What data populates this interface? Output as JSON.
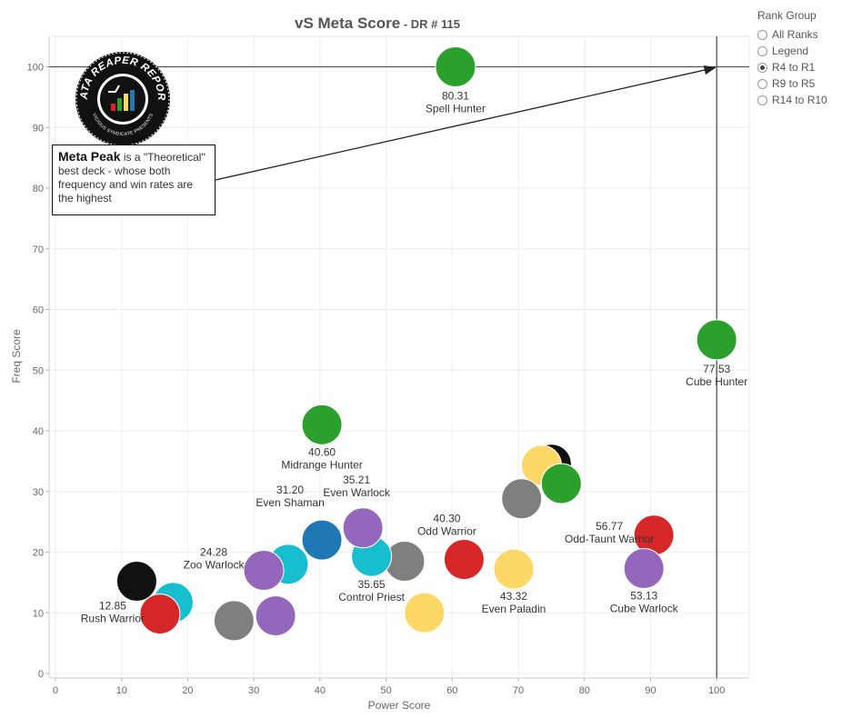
{
  "chart_data": {
    "type": "scatter",
    "title": "vS Meta Score",
    "subtitle": "DR # 115",
    "xlabel": "Power Score",
    "ylabel": "Freq Score",
    "xlim": [
      0,
      105
    ],
    "ylim": [
      0,
      105
    ],
    "xticks": [
      "0",
      "10",
      "20",
      "30",
      "40",
      "50",
      "60",
      "70",
      "80",
      "90",
      "100"
    ],
    "yticks": [
      "0",
      "10",
      "20",
      "30",
      "40",
      "50",
      "60",
      "70",
      "80",
      "90",
      "100"
    ],
    "grid": true,
    "meta_peak": {
      "x": 100,
      "y": 100
    },
    "points": [
      {
        "x": 60.5,
        "y": 100,
        "color": "#2ca02c",
        "value": "80.31",
        "label": "Spell Hunter"
      },
      {
        "x": 100,
        "y": 55,
        "color": "#2ca02c",
        "value": "77.53",
        "label": "Cube Hunter"
      },
      {
        "x": 40.3,
        "y": 41,
        "color": "#2ca02c",
        "value": "40.60",
        "label": "Midrange Hunter"
      },
      {
        "x": 75,
        "y": 34.5,
        "color": "#111111",
        "value": "",
        "label": ""
      },
      {
        "x": 73.5,
        "y": 34.3,
        "color": "#fdd867",
        "value": "",
        "label": ""
      },
      {
        "x": 76.5,
        "y": 31.3,
        "color": "#2ca02c",
        "value": "",
        "label": ""
      },
      {
        "x": 70.5,
        "y": 28.8,
        "color": "#7f7f7f",
        "value": "",
        "label": ""
      },
      {
        "x": 90.5,
        "y": 22.8,
        "color": "#d62728",
        "value": "56.77",
        "label": "Odd-Taunt Warrior"
      },
      {
        "x": 89,
        "y": 17.3,
        "color": "#9467bd",
        "value": "53.13",
        "label": "Cube Warlock"
      },
      {
        "x": 69.3,
        "y": 17.2,
        "color": "#fdd867",
        "value": "43.32",
        "label": "Even Paladin"
      },
      {
        "x": 61.8,
        "y": 18.8,
        "color": "#d62728",
        "value": "40.30",
        "label": "Odd Warrior"
      },
      {
        "x": 52.8,
        "y": 18.5,
        "color": "#7f7f7f",
        "value": "",
        "label": ""
      },
      {
        "x": 47.8,
        "y": 19.3,
        "color": "#17becf",
        "value": "35.65",
        "label": "Control Priest"
      },
      {
        "x": 46.5,
        "y": 24,
        "color": "#9467bd",
        "value": "35.21",
        "label": "Even Warlock"
      },
      {
        "x": 40.3,
        "y": 22,
        "color": "#1f77b4",
        "value": "31.20",
        "label": "Even Shaman"
      },
      {
        "x": 35.2,
        "y": 18,
        "color": "#17becf",
        "value": "",
        "label": ""
      },
      {
        "x": 31.5,
        "y": 17,
        "color": "#9467bd",
        "value": "24.28",
        "label": "Zoo Warlock"
      },
      {
        "x": 55.8,
        "y": 10,
        "color": "#fdd867",
        "value": "",
        "label": ""
      },
      {
        "x": 33.3,
        "y": 9.5,
        "color": "#9467bd",
        "value": "",
        "label": ""
      },
      {
        "x": 27,
        "y": 8.7,
        "color": "#7f7f7f",
        "value": "",
        "label": ""
      },
      {
        "x": 17.8,
        "y": 11.7,
        "color": "#17becf",
        "value": "",
        "label": ""
      },
      {
        "x": 15.8,
        "y": 9.8,
        "color": "#d62728",
        "value": "12.85",
        "label": "Rush Warrior"
      },
      {
        "x": 12.3,
        "y": 15.2,
        "color": "#111111",
        "value": "",
        "label": ""
      }
    ]
  },
  "legend": {
    "title": "Rank Group",
    "options": [
      "All Ranks",
      "Legend",
      "R4 to R1",
      "R9 to R5",
      "R14 to R10"
    ],
    "selected": "R4 to R1"
  },
  "callout": {
    "bold": "Meta Peak",
    "text": " is a \"Theoretical\" best deck - whose both frequency and win rates are the highest"
  },
  "logo": {
    "top_text": "DATA REAPER REPORT",
    "bottom_text": "VICIOUS SYNDICATE PRESENTS"
  }
}
